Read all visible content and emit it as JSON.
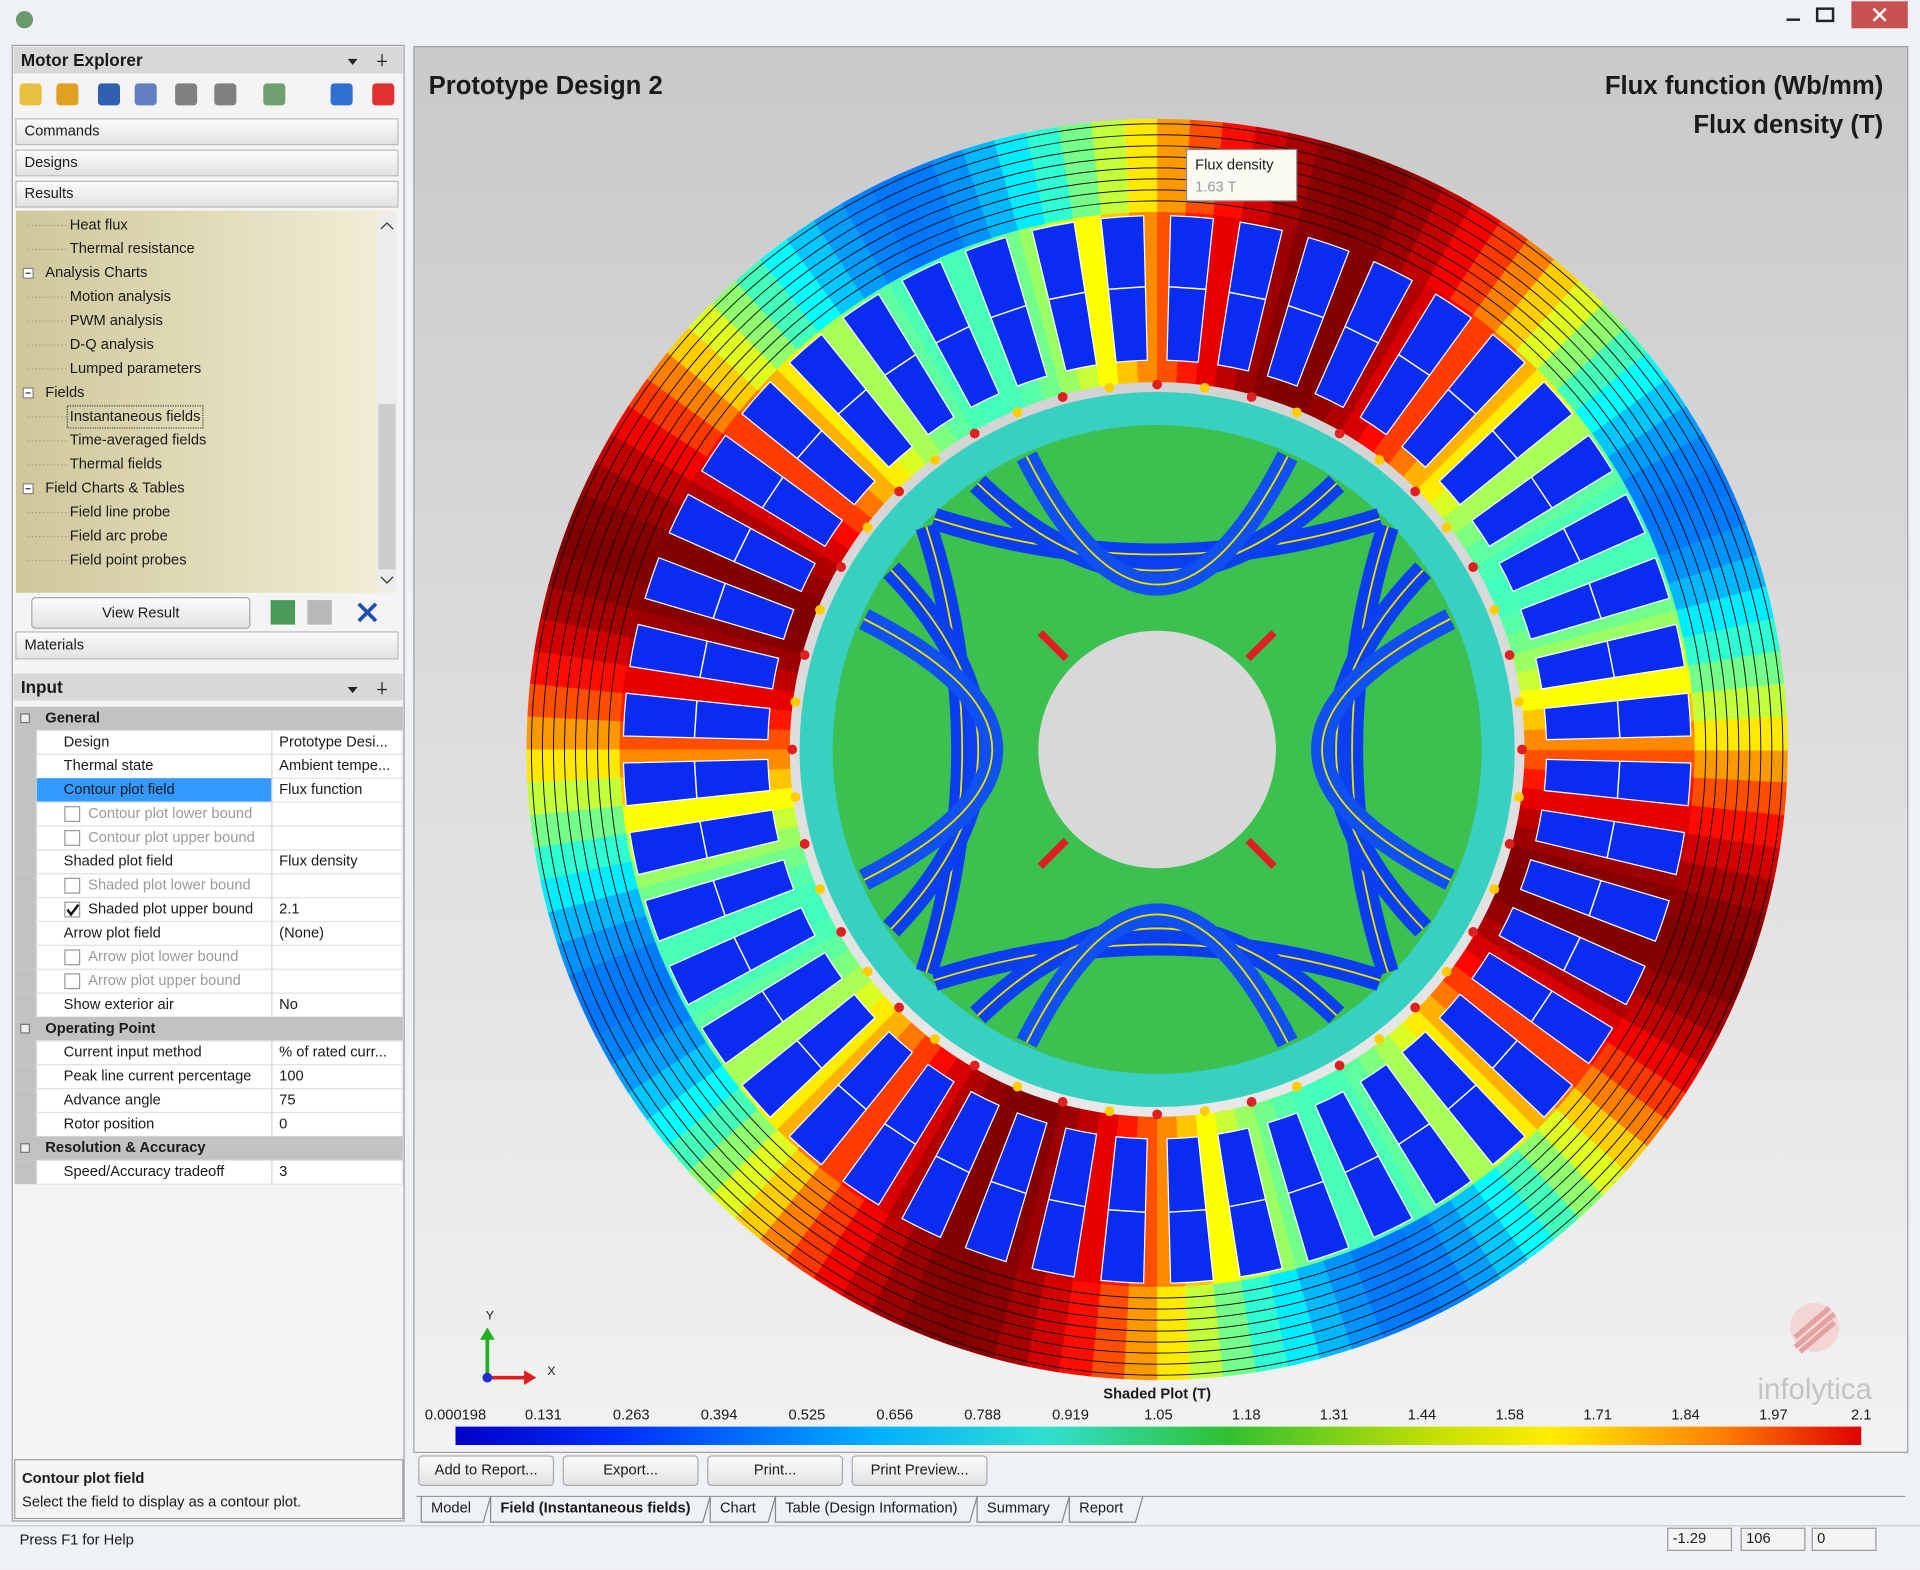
{
  "window": {
    "status": "Press F1 for Help",
    "status_fields": [
      "-1.29",
      "106",
      "0"
    ]
  },
  "explorer": {
    "title": "Motor Explorer",
    "sections": [
      "Commands",
      "Designs",
      "Results"
    ],
    "tree": {
      "items_top": [
        "Heat flux",
        "Thermal resistance"
      ],
      "groups": [
        {
          "label": "Analysis Charts",
          "items": [
            "Motion analysis",
            "PWM analysis",
            "D-Q analysis",
            "Lumped parameters"
          ]
        },
        {
          "label": "Fields",
          "items": [
            "Instantaneous fields",
            "Time-averaged fields",
            "Thermal fields"
          ],
          "selected": "Instantaneous fields"
        },
        {
          "label": "Field Charts & Tables",
          "items": [
            "Field line probe",
            "Field arc probe",
            "Field point probes"
          ]
        }
      ]
    },
    "view_result": "View Result",
    "materials": "Materials"
  },
  "input": {
    "title": "Input",
    "sections": [
      {
        "label": "General",
        "rows": [
          {
            "name": "Design",
            "value": "Prototype Desi..."
          },
          {
            "name": "Thermal state",
            "value": "Ambient tempe..."
          },
          {
            "name": "Contour plot field",
            "value": "Flux function",
            "selected": true
          },
          {
            "name": "Contour plot lower bound",
            "checked": false,
            "enabled": false
          },
          {
            "name": "Contour plot upper bound",
            "checked": false,
            "enabled": false
          },
          {
            "name": "Shaded plot field",
            "value": "Flux density"
          },
          {
            "name": "Shaded plot lower bound",
            "checked": false,
            "enabled": false
          },
          {
            "name": "Shaded plot upper bound",
            "checked": true,
            "value": "2.1"
          },
          {
            "name": "Arrow plot field",
            "value": "(None)"
          },
          {
            "name": "Arrow plot lower bound",
            "checked": false,
            "enabled": false
          },
          {
            "name": "Arrow plot upper bound",
            "checked": false,
            "enabled": false
          },
          {
            "name": "Show exterior air",
            "value": "No"
          }
        ]
      },
      {
        "label": "Operating Point",
        "rows": [
          {
            "name": "Current input method",
            "value": "% of rated curr..."
          },
          {
            "name": "Peak line current percentage",
            "value": "100"
          },
          {
            "name": "Advance angle",
            "value": "75"
          },
          {
            "name": "Rotor position",
            "value": "0"
          }
        ]
      },
      {
        "label": "Resolution & Accuracy",
        "rows": [
          {
            "name": "Speed/Accuracy tradeoff",
            "value": "3"
          }
        ]
      }
    ],
    "description": {
      "title": "Contour plot field",
      "text": "Select the field to display as a contour plot."
    }
  },
  "field_view": {
    "title": "Prototype Design 2",
    "contour_title": "Flux function (Wb/mm)",
    "shaded_title": "Flux density (T)",
    "tooltip": {
      "title": "Flux density",
      "value": "1.63 T"
    },
    "axes": {
      "y": "Y",
      "x": "X"
    },
    "logo": "infolytica",
    "colorbar": {
      "title": "Shaded Plot (T)",
      "labels": [
        0.000198,
        0.131,
        0.263,
        0.394,
        0.525,
        0.656,
        0.788,
        0.919,
        1.05,
        1.18,
        1.31,
        1.44,
        1.58,
        1.71,
        1.84,
        1.97,
        2.1
      ]
    },
    "buttons": [
      "Add to Report...",
      "Export...",
      "Print...",
      "Print Preview..."
    ],
    "tabs": [
      "Model",
      "Field (Instantaneous fields)",
      "Chart",
      "Table (Design Information)",
      "Summary",
      "Report"
    ],
    "active_tab": "Field (Instantaneous fields)"
  }
}
